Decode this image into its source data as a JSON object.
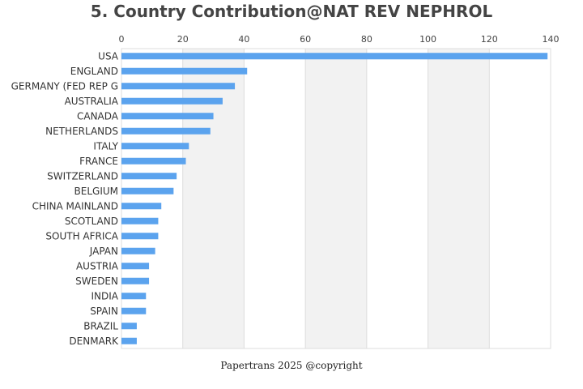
{
  "chart_data": {
    "type": "bar",
    "orientation": "horizontal",
    "title": "5. Country Contribution@NAT REV NEPHROL",
    "xlabel": "",
    "ylabel": "",
    "xlim": [
      0,
      140
    ],
    "x_ticks": [
      0,
      20,
      40,
      60,
      80,
      100,
      120,
      140
    ],
    "x_axis_position": "top",
    "grid": true,
    "alternating_bands": true,
    "categories": [
      "USA",
      "ENGLAND",
      "GERMANY (FED REP G",
      "AUSTRALIA",
      "CANADA",
      "NETHERLANDS",
      "ITALY",
      "FRANCE",
      "SWITZERLAND",
      "BELGIUM",
      "CHINA MAINLAND",
      "SCOTLAND",
      "SOUTH AFRICA",
      "JAPAN",
      "AUSTRIA",
      "SWEDEN",
      "INDIA",
      "SPAIN",
      "BRAZIL",
      "DENMARK"
    ],
    "values": [
      139,
      41,
      37,
      33,
      30,
      29,
      22,
      21,
      18,
      17,
      13,
      12,
      12,
      11,
      9,
      9,
      8,
      8,
      5,
      5
    ],
    "bar_color": "#5ba3ee",
    "band_color": "#f2f2f2",
    "grid_color": "#dddddd"
  },
  "footer": "Papertrans 2025 @copyright"
}
